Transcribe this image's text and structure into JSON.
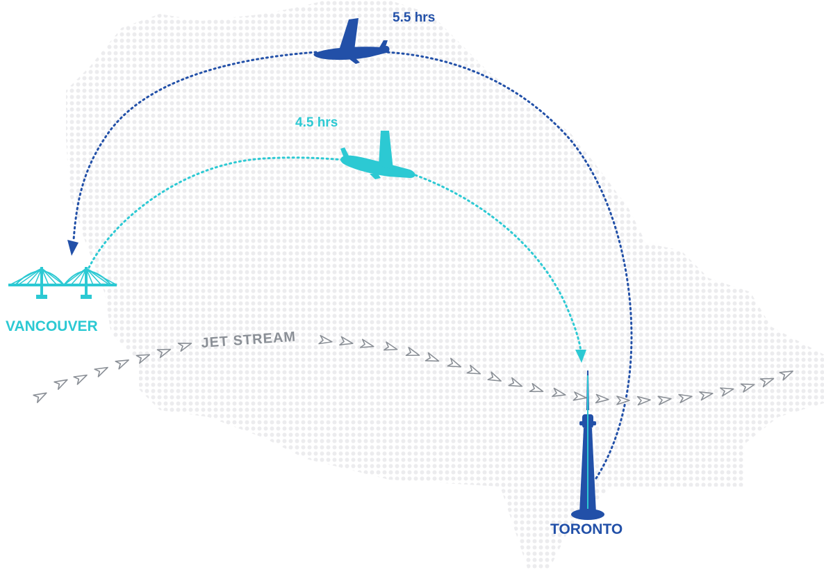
{
  "colors": {
    "dark_blue": "#2250a8",
    "teal": "#2cc9d3",
    "grey": "#8a8f96",
    "map_dot": "#ececee"
  },
  "flights": {
    "westbound": {
      "duration": "5.5 hrs",
      "icon": "airplane-icon"
    },
    "eastbound": {
      "duration": "4.5 hrs",
      "icon": "airplane-icon"
    }
  },
  "cities": {
    "vancouver": {
      "label": "VANCOUVER",
      "icon": "bridge-icon"
    },
    "toronto": {
      "label": "TORONTO",
      "icon": "cn-tower-icon"
    }
  },
  "jet_stream": {
    "label": "JET STREAM"
  }
}
